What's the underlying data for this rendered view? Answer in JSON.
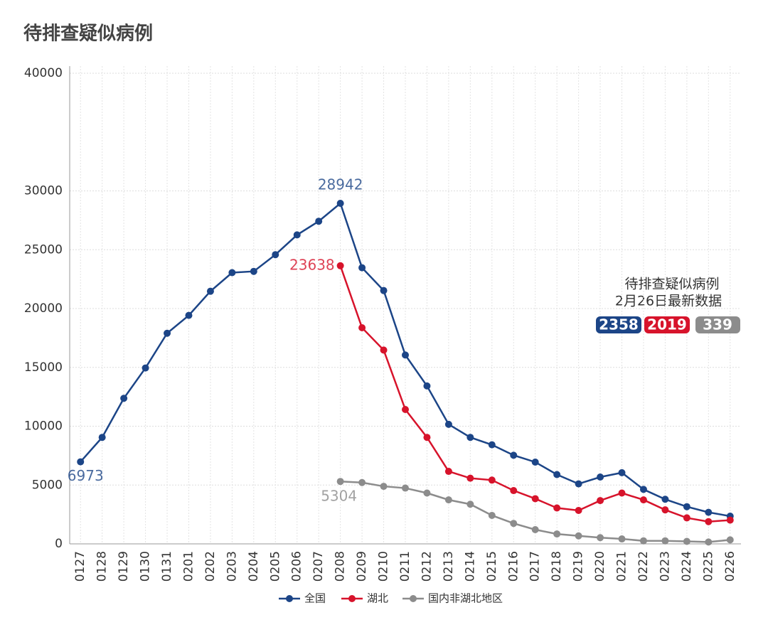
{
  "chart_data": {
    "type": "line",
    "title": "待排查疑似病例",
    "categories": [
      "0127",
      "0128",
      "0129",
      "0130",
      "0131",
      "0201",
      "0202",
      "0203",
      "0204",
      "0205",
      "0206",
      "0207",
      "0208",
      "0209",
      "0210",
      "0211",
      "0212",
      "0213",
      "0214",
      "0215",
      "0216",
      "0217",
      "0218",
      "0219",
      "0220",
      "0221",
      "0222",
      "0223",
      "0224",
      "0225",
      "0226"
    ],
    "series": [
      {
        "name": "全国",
        "color": "#1c4587",
        "values": [
          6973,
          9050,
          12370,
          14950,
          17900,
          19420,
          21470,
          23050,
          23160,
          24580,
          26260,
          27420,
          28942,
          23470,
          21530,
          16050,
          13420,
          10160,
          9050,
          8420,
          7530,
          6950,
          5890,
          5100,
          5680,
          6050,
          4630,
          3790,
          3160,
          2680,
          2358
        ]
      },
      {
        "name": "湖北",
        "color": "#d7132b",
        "values": [
          null,
          null,
          null,
          null,
          null,
          null,
          null,
          null,
          null,
          null,
          null,
          null,
          23638,
          18370,
          16470,
          11420,
          9050,
          6160,
          5580,
          5420,
          4530,
          3840,
          3050,
          2840,
          3680,
          4320,
          3740,
          2890,
          2210,
          1890,
          2019
        ]
      },
      {
        "name": "国内非湖北地区",
        "color": "#8c8c8c",
        "values": [
          null,
          null,
          null,
          null,
          null,
          null,
          null,
          null,
          null,
          null,
          null,
          null,
          5304,
          5210,
          4890,
          4740,
          4320,
          3740,
          3370,
          2420,
          1740,
          1210,
          840,
          680,
          530,
          420,
          260,
          260,
          210,
          160,
          339
        ]
      }
    ],
    "ylim": [
      0,
      40000
    ],
    "yticks": [
      0,
      5000,
      10000,
      15000,
      20000,
      25000,
      30000,
      40000
    ],
    "grid": true,
    "box_title": "待排查疑似病例",
    "box_subtitle": "2月26日最新数据"
  }
}
